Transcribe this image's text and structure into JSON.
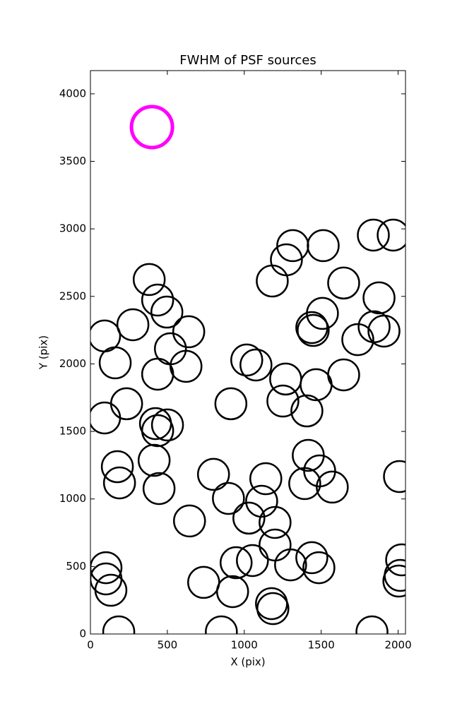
{
  "chart_data": {
    "type": "scatter",
    "title": "FWHM of PSF sources",
    "x_label": "X (pix)",
    "y_label": "Y (pix)",
    "xlim": [
      0,
      2048
    ],
    "ylim": [
      0,
      4172
    ],
    "xticks": [
      0,
      500,
      1000,
      1500,
      2000
    ],
    "yticks": [
      0,
      500,
      1000,
      1500,
      2000,
      2500,
      3000,
      3500,
      4000
    ],
    "series": [
      {
        "color": "#000000",
        "x": [
          92,
          276,
          382,
          437,
          497,
          161,
          520,
          437,
          639,
          621,
          235,
          92,
          423,
          437,
          501,
          175,
          189,
          414,
          446,
          644,
          800,
          897,
          913,
          1030,
          1016,
          1076,
          1140,
          1113,
          1200,
          1200,
          947,
          1053,
          1301,
          1177,
          1186,
          736,
          924,
          851,
          184,
          101,
          101,
          133,
          1182,
          1274,
          1315,
          1513,
          1646,
          1839,
          1968,
          1876,
          1508,
          1439,
          1448,
          1738,
          1844,
          1908,
          1269,
          1467,
          1646,
          1251,
          1407,
          1416,
          1490,
          1572,
          1393,
          1439,
          1485,
          2009,
          2023,
          2014,
          2005,
          1830
        ],
        "values": [
          2207,
          2290,
          2625,
          2473,
          2384,
          2008,
          2112,
          1924,
          2238,
          1982,
          1705,
          1600,
          1558,
          1506,
          1548,
          1239,
          1119,
          1286,
          1077,
          837,
          1182,
          1004,
          1705,
          858,
          2029,
          1992,
          1150,
          983,
          826,
          659,
          528,
          544,
          512,
          225,
          188,
          382,
          314,
          16,
          16,
          491,
          408,
          324,
          2614,
          2771,
          2876,
          2876,
          2599,
          2954,
          2954,
          2489,
          2374,
          2269,
          2248,
          2180,
          2275,
          2243,
          1888,
          1846,
          1919,
          1725,
          1652,
          1323,
          1208,
          1088,
          1114,
          565,
          491,
          1166,
          549,
          434,
          392,
          16
        ]
      },
      {
        "color": "#ff00ff",
        "x": [
          400
        ],
        "values": [
          3754
        ]
      }
    ]
  }
}
